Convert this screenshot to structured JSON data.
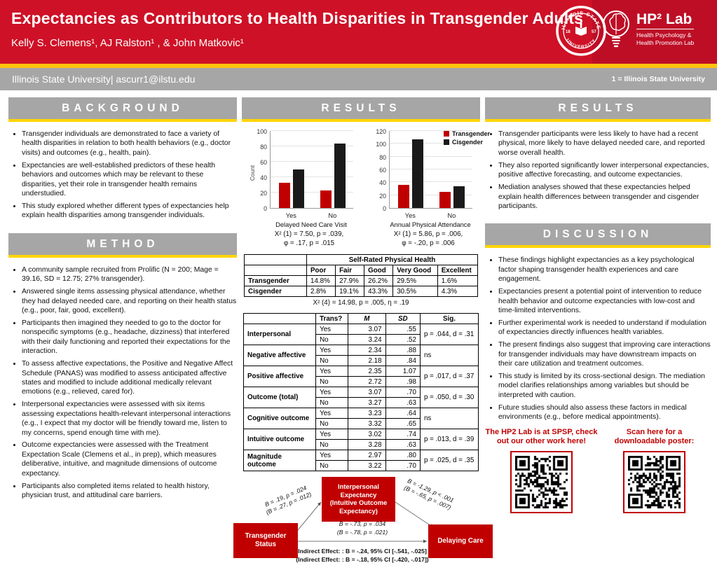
{
  "header": {
    "title": "Expectancies as Contributors to Health Disparities in Transgender Adults",
    "authors": "Kelly S. Clemens¹, AJ Ralston¹ , & John Matkovic¹",
    "bar_left": "Illinois State University| ascurr1@ilstu.edu",
    "bar_right": "1 = Illinois State University",
    "seal": {
      "top_text": "ILLINOIS STATE",
      "bottom_text": "UNIVERSITY",
      "left_num": "18",
      "right_num": "57"
    },
    "hp2": {
      "title": "HP² Lab",
      "subtitle1": "Health Psychology &",
      "subtitle2": "Health Promotion Lab"
    }
  },
  "colors": {
    "header_red": "#CE1126",
    "box_red": "#C00000",
    "gold_strip": "#FFC20E",
    "section_gray": "#A6A6A6",
    "section_underline": "#FFD500",
    "bar_black": "#1A1A1A"
  },
  "sections": {
    "background": {
      "title": "BACKGROUND",
      "bullets": [
        "Transgender individuals are demonstrated to face a variety of health disparities in relation to both health behaviors (e.g., doctor visits) and outcomes (e.g., health, pain).",
        "Expectancies are well-established predictors of these health behaviors and outcomes which may be relevant to these disparities, yet their role in transgender health remains understudied.",
        "This study explored whether different types of expectancies help explain health disparities among transgender individuals."
      ]
    },
    "method": {
      "title": "METHOD",
      "bullets": [
        "A community sample recruited from Prolific (N = 200; Mage = 39.16, SD = 12.75; 27% transgender).",
        "Answered single items assessing physical attendance, whether they had delayed needed care, and reporting on their health status (e.g., poor, fair, good, excellent).",
        "Participants then imagined they needed to go to the doctor for nonspecific symptoms (e.g., headache, dizziness) that interfered with their daily functioning and reported their expectations for the interaction.",
        "To assess affective expectations, the Positive and Negative Affect Schedule (PANAS) was modified to assess anticipated affective states and modified to include additional medically relevant emotions (e.g., relieved, cared for).",
        "Interpersonal expectancies were assessed with six items assessing expectations health-relevant interpersonal interactions (e.g., I expect that my doctor will be friendly toward me, listen to my concerns, spend enough time with me).",
        "Outcome expectancies were assessed with the Treatment Expectation Scale (Clemens et al., in prep), which measures deliberative, intuitive, and magnitude dimensions of outcome expectancy.",
        "Participants also completed items related to health history, physician trust, and attitudinal care barriers."
      ]
    },
    "results_middle": {
      "title": "RESULTS"
    },
    "results_right": {
      "title": "RESULTS",
      "bullets": [
        "Transgender participants were less likely to have had a recent physical, more likely to have delayed needed care, and reported worse overall health.",
        "They also reported significantly lower interpersonal expectancies, positive affective forecasting, and outcome expectancies.",
        "Mediation analyses showed that these expectancies helped explain health differences between transgender and cisgender participants."
      ]
    },
    "discussion": {
      "title": "DISCUSSION",
      "bullets": [
        "These findings highlight expectancies as a key psychological factor shaping transgender health experiences and care engagement.",
        "Expectancies present a potential point of intervention to reduce health behavior and outcome expectancies with low-cost and time-limited interventions.",
        "Further experimental work is needed to understand if modulation of expectancies directly influences health variables.",
        "The present findings also suggest that improving care interactions for transgender individuals may have downstream impacts on their care utilization and treatment outcomes.",
        "This study is limited by its cross-sectional design. The mediation model clarifies relationships among variables but should be interpreted with caution.",
        "Future studies should also assess these factors in medical environments (e.g., before medical appointments)."
      ]
    }
  },
  "chart_data": [
    {
      "type": "bar",
      "categories": [
        "Yes",
        "No"
      ],
      "series": [
        {
          "name": "Transgender",
          "color": "#C00000",
          "values": [
            33,
            23
          ]
        },
        {
          "name": "Cisgender",
          "color": "#1A1A1A",
          "values": [
            50,
            84
          ]
        }
      ],
      "xlabel": "Delayed Need Care Visit",
      "ylabel": "Count",
      "ylim": [
        0,
        100
      ],
      "yticks": [
        0,
        20,
        40,
        60,
        80,
        100
      ],
      "grid": true,
      "legend": false,
      "caption_line1": "X² (1) =  7.50, p = .039,",
      "caption_line2": "φ = .17, p = .015"
    },
    {
      "type": "bar",
      "categories": [
        "Yes",
        "No"
      ],
      "series": [
        {
          "name": "Transgender",
          "color": "#C00000",
          "values": [
            36,
            25
          ]
        },
        {
          "name": "Cisgender",
          "color": "#1A1A1A",
          "values": [
            107,
            34
          ]
        }
      ],
      "xlabel": "Annual Physical Attendance",
      "ylabel": "",
      "ylim": [
        0,
        120
      ],
      "yticks": [
        0,
        20,
        40,
        60,
        80,
        100,
        120
      ],
      "grid": true,
      "legend": true,
      "legend_position": "top-right",
      "caption_line1": "X² (1) =  5.86, p = .006,",
      "caption_line2": "φ = -.20, p = .006"
    }
  ],
  "tables": {
    "health": {
      "span_header": "Self-Rated Physical Health",
      "col_headers": [
        "Poor",
        "Fair",
        "Good",
        "Very Good",
        "Excellent"
      ],
      "rows": [
        {
          "label": "Transgender",
          "values": [
            "14.8%",
            "27.9%",
            "26.2%",
            "29.5%",
            "1.6%"
          ]
        },
        {
          "label": "Cisgender",
          "values": [
            "2.8%",
            "19.1%",
            "43.3%",
            "30.5%",
            "4.3%"
          ]
        }
      ],
      "caption": "X² (4) =  14.98, p = .005, η = .19"
    },
    "expectancies": {
      "col_headers": [
        "Trans?",
        "M",
        "SD",
        "Sig."
      ],
      "groups": [
        {
          "label": "Interpersonal",
          "yes": [
            "3.07",
            ".55"
          ],
          "no": [
            "3.24",
            ".52"
          ],
          "sig": "p = .044, d = .31"
        },
        {
          "label": "Negative affective",
          "yes": [
            "2.34",
            ".88"
          ],
          "no": [
            "2.18",
            ".84"
          ],
          "sig": "ns"
        },
        {
          "label": "Positive affective",
          "yes": [
            "2.35",
            "1.07"
          ],
          "no": [
            "2.72",
            ".98"
          ],
          "sig": "p = .017, d = .37"
        },
        {
          "label": "Outcome (total)",
          "yes": [
            "3.07",
            ".70"
          ],
          "no": [
            "3.27",
            ".63"
          ],
          "sig": "p = .050, d = .30"
        },
        {
          "label": "Cognitive outcome",
          "yes": [
            "3.23",
            ".64"
          ],
          "no": [
            "3.32",
            ".65"
          ],
          "sig": "ns"
        },
        {
          "label": "Intuitive outcome",
          "yes": [
            "3.02",
            ".74"
          ],
          "no": [
            "3.28",
            ".63"
          ],
          "sig": "p = .013, d = .39"
        },
        {
          "label": "Magnitude outcome",
          "yes": [
            "2.97",
            ".80"
          ],
          "no": [
            "3.22",
            ".70"
          ],
          "sig": "p = .025, d = .35"
        }
      ]
    }
  },
  "diagram": {
    "box_mediator": "Interpersonal\nExpectancy\n(Intuitive Outcome\nExpectancy)",
    "box_predictor": "Transgender\nStatus",
    "box_outcome": "Delaying Care",
    "path_a_line1": "B = .19, p = .024",
    "path_a_line2": "(B = .27, p = .012)",
    "path_b_line1": "B = -1.29, p < .001",
    "path_b_line2": "(B = -.65, p = .007)",
    "direct_line1": "B = -.73, p = .034",
    "direct_line2": "(B = -.78, p = .021)",
    "indirect_line1": "Indirect Effect: : B = -.24, 95% CI [-.541, -.025]",
    "indirect_line2": "(Indirect Effect: : B = -.18, 95% CI [-.420, -.017])"
  },
  "qr": {
    "left_caption_line1": "The HP2 Lab is at SPSP, check",
    "left_caption_line2": "out our other work here!",
    "right_caption_line1": "Scan here for a",
    "right_caption_line2": "downloadable poster:"
  }
}
